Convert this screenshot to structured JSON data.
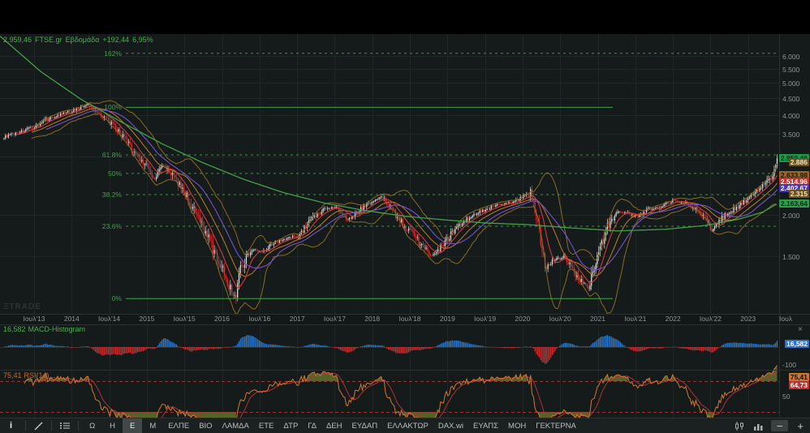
{
  "header": {
    "last": "2.959,46",
    "symbol": "FTSE.gr",
    "timeframe": "Εβδομάδα",
    "change": "+192,44",
    "change_pct": "6,95%"
  },
  "watermark": "ΞTRADE",
  "main_pane": {
    "y_ticks": [
      {
        "text": "6.000",
        "value": 6000
      },
      {
        "text": "5.500",
        "value": 5500
      },
      {
        "text": "5.000",
        "value": 5000
      },
      {
        "text": "4.500",
        "value": 4500
      },
      {
        "text": "4.000",
        "value": 4000
      },
      {
        "text": "3.500",
        "value": 3500
      },
      {
        "text": "3.000",
        "value": 3000
      },
      {
        "text": "2.000",
        "value": 2000
      },
      {
        "text": "1.500",
        "value": 1500
      }
    ],
    "fib_levels": [
      {
        "label": "162%",
        "price": 6121,
        "style": "dashed"
      },
      {
        "label": "100%",
        "price": 4211,
        "style": "solid"
      },
      {
        "label": "61.8%",
        "price": 3030,
        "style": "dashed"
      },
      {
        "label": "50%",
        "price": 2665,
        "style": "dashed"
      },
      {
        "label": "38.2%",
        "price": 2301,
        "style": "dashed"
      },
      {
        "label": "23.6%",
        "price": 1849,
        "style": "dashed"
      },
      {
        "label": "0%",
        "price": 1120,
        "style": "solid"
      }
    ],
    "price_tags": [
      {
        "text": "2.959,46",
        "value": 2959.46,
        "bg": "#169c49",
        "fg": "#062b13"
      },
      {
        "text": "2.886",
        "value": 2886,
        "bg": "#6e531f",
        "fg": "#efe2c2"
      },
      {
        "text": "2.633,98",
        "value": 2633.98,
        "bg": "#97671d",
        "fg": "#1a1206"
      },
      {
        "text": "2.514,96",
        "value": 2514.96,
        "bg": "#c93232",
        "fg": "#ffffff"
      },
      {
        "text": "2.402,67",
        "value": 2402.67,
        "bg": "#4b38b0",
        "fg": "#ffffff"
      },
      {
        "text": "2.315",
        "value": 2315,
        "bg": "#6e531f",
        "fg": "#efe2c2"
      },
      {
        "text": "2.163,64",
        "value": 2163.64,
        "bg": "#2c9e4e",
        "fg": "#07230f"
      }
    ]
  },
  "macd_pane": {
    "value": "16,582",
    "name": "MACD-Histogram",
    "tag": "16,582",
    "axis_label": "-100",
    "close_glyph": "×"
  },
  "rsi_pane": {
    "value": "75,41",
    "name": "RSI(14)",
    "tag_main": "75,41",
    "tag_signal": "64,73",
    "mid_label": "50"
  },
  "toolbar": {
    "info_glyph": "i",
    "timeframes": [
      {
        "label": "Ω",
        "selected": false
      },
      {
        "label": "Η",
        "selected": false
      },
      {
        "label": "Ε",
        "selected": true
      },
      {
        "label": "Μ",
        "selected": false
      }
    ],
    "tickers": [
      "ΕΛΠΕ",
      "ΒΙΟ",
      "ΛΑΜΔΑ",
      "ΕΤΕ",
      "ΔΤΡ",
      "ΓΔ",
      "ΔΕΗ",
      "ΕΥΔΑΠ",
      "ΕΛΛΑΚΤΩΡ",
      "DAX.wi",
      "ΕΥΑΠΣ",
      "ΜΟΗ",
      "ΓΕΚΤΕΡΝΑ"
    ],
    "zoom_out": "−",
    "zoom_in": "+"
  },
  "colors": {
    "background": "#151a1a",
    "panel_black": "#000000",
    "grid": "#202626",
    "separator": "#2b3131",
    "accent_green": "#48b04f",
    "fib_green": "#41a24b",
    "candle_up": "#dcdcdc",
    "candle_down": "#e03030",
    "bollinger": "#8a6a25",
    "bollinger_basis": "#bf7f24",
    "sma_fast_red": "#d23b3b",
    "sma_slow_purple": "#7a50cc",
    "green_ma": "#43a047",
    "macd_pos": "#2d7fd9",
    "macd_neg": "#d63030",
    "macd_tag_bg": "#2d72c8",
    "rsi_line": "#d07830",
    "rsi_signal": "#b03434",
    "rsi_fill": "#5c6b2d",
    "rsi_tag_bg": "#c87828",
    "rsi_sig_tag_bg": "#c03030",
    "axis_text": "#8f9595",
    "toolbar_text": "#b9bfbf"
  },
  "chart_data": {
    "type": "candlestick",
    "symbol": "FTSE.gr",
    "timeframe": "Εβδομάδα (weekly)",
    "last_close": 2959.46,
    "change": 192.44,
    "change_pct": 6.95,
    "log_scale": true,
    "x_axis_labels": [
      "Ιουλ'13",
      "2014",
      "Ιουλ'14",
      "2015",
      "Ιουλ'15",
      "2016",
      "Ιουλ'16",
      "2017",
      "Ιουλ'17",
      "2018",
      "Ιουλ'18",
      "2019",
      "Ιουλ'19",
      "2020",
      "Ιουλ'20",
      "2021",
      "Ιουλ'21",
      "2022",
      "Ιουλ'22",
      "2023",
      "Ιουλ"
    ],
    "y_axis_range": [
      1000,
      6500
    ],
    "fibonacci": {
      "high": 4211,
      "low": 1120,
      "levels_pct": [
        162,
        100,
        61.8,
        50,
        38.2,
        23.6,
        0
      ]
    },
    "price_keyframes": [
      [
        0,
        3400
      ],
      [
        40,
        3650
      ],
      [
        60,
        3900
      ],
      [
        88,
        4100
      ],
      [
        108,
        4300
      ],
      [
        125,
        4000
      ],
      [
        135,
        3800
      ],
      [
        150,
        3480
      ],
      [
        165,
        3100
      ],
      [
        182,
        2770
      ],
      [
        190,
        2540
      ],
      [
        200,
        2840
      ],
      [
        210,
        2680
      ],
      [
        228,
        2330
      ],
      [
        240,
        2030
      ],
      [
        255,
        1750
      ],
      [
        265,
        1520
      ],
      [
        275,
        1370
      ],
      [
        285,
        1180
      ],
      [
        290,
        1120
      ],
      [
        295,
        1370
      ],
      [
        310,
        1580
      ],
      [
        322,
        1545
      ],
      [
        335,
        1640
      ],
      [
        350,
        1690
      ],
      [
        368,
        1740
      ],
      [
        385,
        1950
      ],
      [
        400,
        2090
      ],
      [
        415,
        2120
      ],
      [
        428,
        1930
      ],
      [
        440,
        2040
      ],
      [
        455,
        2180
      ],
      [
        462,
        2200
      ],
      [
        470,
        2270
      ],
      [
        485,
        2040
      ],
      [
        500,
        1820
      ],
      [
        508,
        1770
      ],
      [
        520,
        1610
      ],
      [
        532,
        1510
      ],
      [
        545,
        1610
      ],
      [
        555,
        1740
      ],
      [
        570,
        1900
      ],
      [
        585,
        2010
      ],
      [
        601,
        2090
      ],
      [
        615,
        2160
      ],
      [
        630,
        2180
      ],
      [
        645,
        2270
      ],
      [
        655,
        2330
      ],
      [
        665,
        1740
      ],
      [
        672,
        1370
      ],
      [
        680,
        1450
      ],
      [
        695,
        1500
      ],
      [
        705,
        1370
      ],
      [
        718,
        1245
      ],
      [
        725,
        1210
      ],
      [
        732,
        1370
      ],
      [
        740,
        1610
      ],
      [
        748,
        1820
      ],
      [
        758,
        2010
      ],
      [
        770,
        2040
      ],
      [
        785,
        1970
      ],
      [
        800,
        2090
      ],
      [
        815,
        2120
      ],
      [
        830,
        2220
      ],
      [
        845,
        2160
      ],
      [
        858,
        2070
      ],
      [
        870,
        1930
      ],
      [
        877,
        1790
      ],
      [
        890,
        1970
      ],
      [
        905,
        2090
      ],
      [
        922,
        2250
      ],
      [
        935,
        2370
      ],
      [
        944,
        2520
      ],
      [
        951,
        2650
      ],
      [
        958,
        2959.46
      ]
    ],
    "green_ma_keyframes": [
      [
        0,
        6900
      ],
      [
        50,
        5400
      ],
      [
        100,
        4450
      ],
      [
        150,
        3800
      ],
      [
        200,
        3270
      ],
      [
        250,
        2870
      ],
      [
        300,
        2560
      ],
      [
        350,
        2330
      ],
      [
        400,
        2170
      ],
      [
        450,
        2060
      ],
      [
        500,
        1980
      ],
      [
        550,
        1930
      ],
      [
        600,
        1890
      ],
      [
        650,
        1870
      ],
      [
        700,
        1830
      ],
      [
        760,
        1790
      ],
      [
        820,
        1810
      ],
      [
        870,
        1860
      ],
      [
        910,
        1940
      ],
      [
        940,
        2040
      ],
      [
        958,
        2163.64
      ]
    ],
    "indicators": {
      "bollinger": {
        "period": 20,
        "stddev": 2,
        "upper_last": 2886,
        "basis_last": 2633.98,
        "lower_last": 2315
      },
      "sma_fast": {
        "period": 10,
        "last": 2514.96
      },
      "sma_slow": {
        "period": 30,
        "last": 2402.67
      },
      "long_ma": {
        "last": 2163.64
      },
      "macd_histogram": {
        "fast": 12,
        "slow": 26,
        "signal": 9,
        "last": 16.582
      },
      "rsi": {
        "period": 14,
        "last": 75.41,
        "signal_last": 64.73,
        "overbought": 70,
        "oversold": 30
      }
    }
  }
}
